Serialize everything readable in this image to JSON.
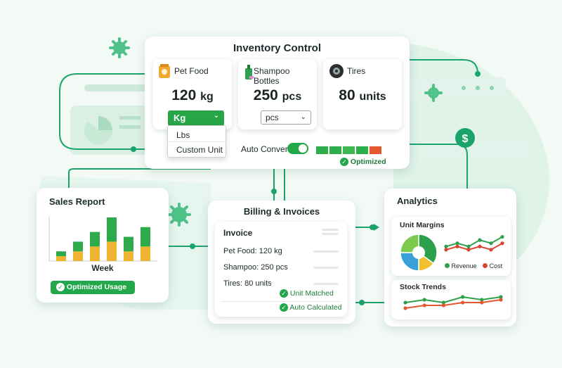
{
  "inventory": {
    "title": "Inventory Control",
    "items": [
      {
        "name": "Pet Food",
        "qty": "120",
        "unit": "kg",
        "selected": "Kg"
      },
      {
        "name": "Shampoo Bottles",
        "qty": "250",
        "unit": "pcs",
        "selected": "pcs"
      },
      {
        "name": "Tires",
        "qty": "80",
        "unit": "units"
      }
    ],
    "dropdown_options": [
      "Lbs",
      "Custom Unit"
    ],
    "auto_convert_label": "Auto Convert",
    "auto_convert_on": true,
    "optimized_label": "Optimized",
    "level_colors": [
      "#2eae4b",
      "#2eae4b",
      "#3bb84f",
      "#2eae4b",
      "#e25a2c"
    ]
  },
  "sales": {
    "title": "Sales Report",
    "xlabel": "Week",
    "button_label": "Optimized Usage"
  },
  "billing": {
    "title": "Billing & Invoices",
    "invoice_title": "Invoice",
    "lines": [
      {
        "label": "Pet Food:",
        "value": "120 kg"
      },
      {
        "label": "Shampoo:",
        "value": "250 pcs"
      },
      {
        "label": "Tires:",
        "value": "80 units"
      }
    ],
    "status_matched": "Unit Matched",
    "status_calculated": "Auto Calculated"
  },
  "analytics": {
    "title": "Analytics",
    "margins_title": "Unit Margins",
    "legend_revenue": "Revenue",
    "legend_cost": "Cost",
    "trends_title": "Stock Trends"
  },
  "chart_data": [
    {
      "type": "bar",
      "title": "Sales Report",
      "xlabel": "Week",
      "categories": [
        "",
        "",
        "",
        "",
        "",
        ""
      ],
      "series": [
        {
          "values": [
            1,
            2,
            3,
            4,
            2,
            3
          ],
          "color": "#f0b530"
        },
        {
          "values": [
            1,
            2,
            3,
            5,
            3,
            4
          ],
          "color": "#2eaa4b"
        }
      ]
    },
    {
      "type": "pie",
      "title": "Unit Margins",
      "slices": [
        {
          "value": 35,
          "color": "#2ca04a"
        },
        {
          "value": 15,
          "color": "#f2c02e"
        },
        {
          "value": 25,
          "color": "#3aa0d8"
        },
        {
          "value": 25,
          "color": "#7ccb4f"
        }
      ]
    },
    {
      "type": "line",
      "title": "Unit Margins",
      "series": [
        {
          "name": "Revenue",
          "color": "#2ca04a",
          "values": [
            3,
            4,
            3,
            5,
            4,
            6
          ]
        },
        {
          "name": "Cost",
          "color": "#d9442e",
          "values": [
            2,
            3,
            2,
            3,
            2,
            4
          ]
        }
      ]
    },
    {
      "type": "line",
      "title": "Stock Trends",
      "series": [
        {
          "color": "#2ca04a",
          "values": [
            4,
            5,
            4,
            6,
            5,
            6
          ]
        },
        {
          "color": "#e4572e",
          "values": [
            2,
            3,
            3,
            4,
            4,
            5
          ]
        }
      ]
    }
  ]
}
